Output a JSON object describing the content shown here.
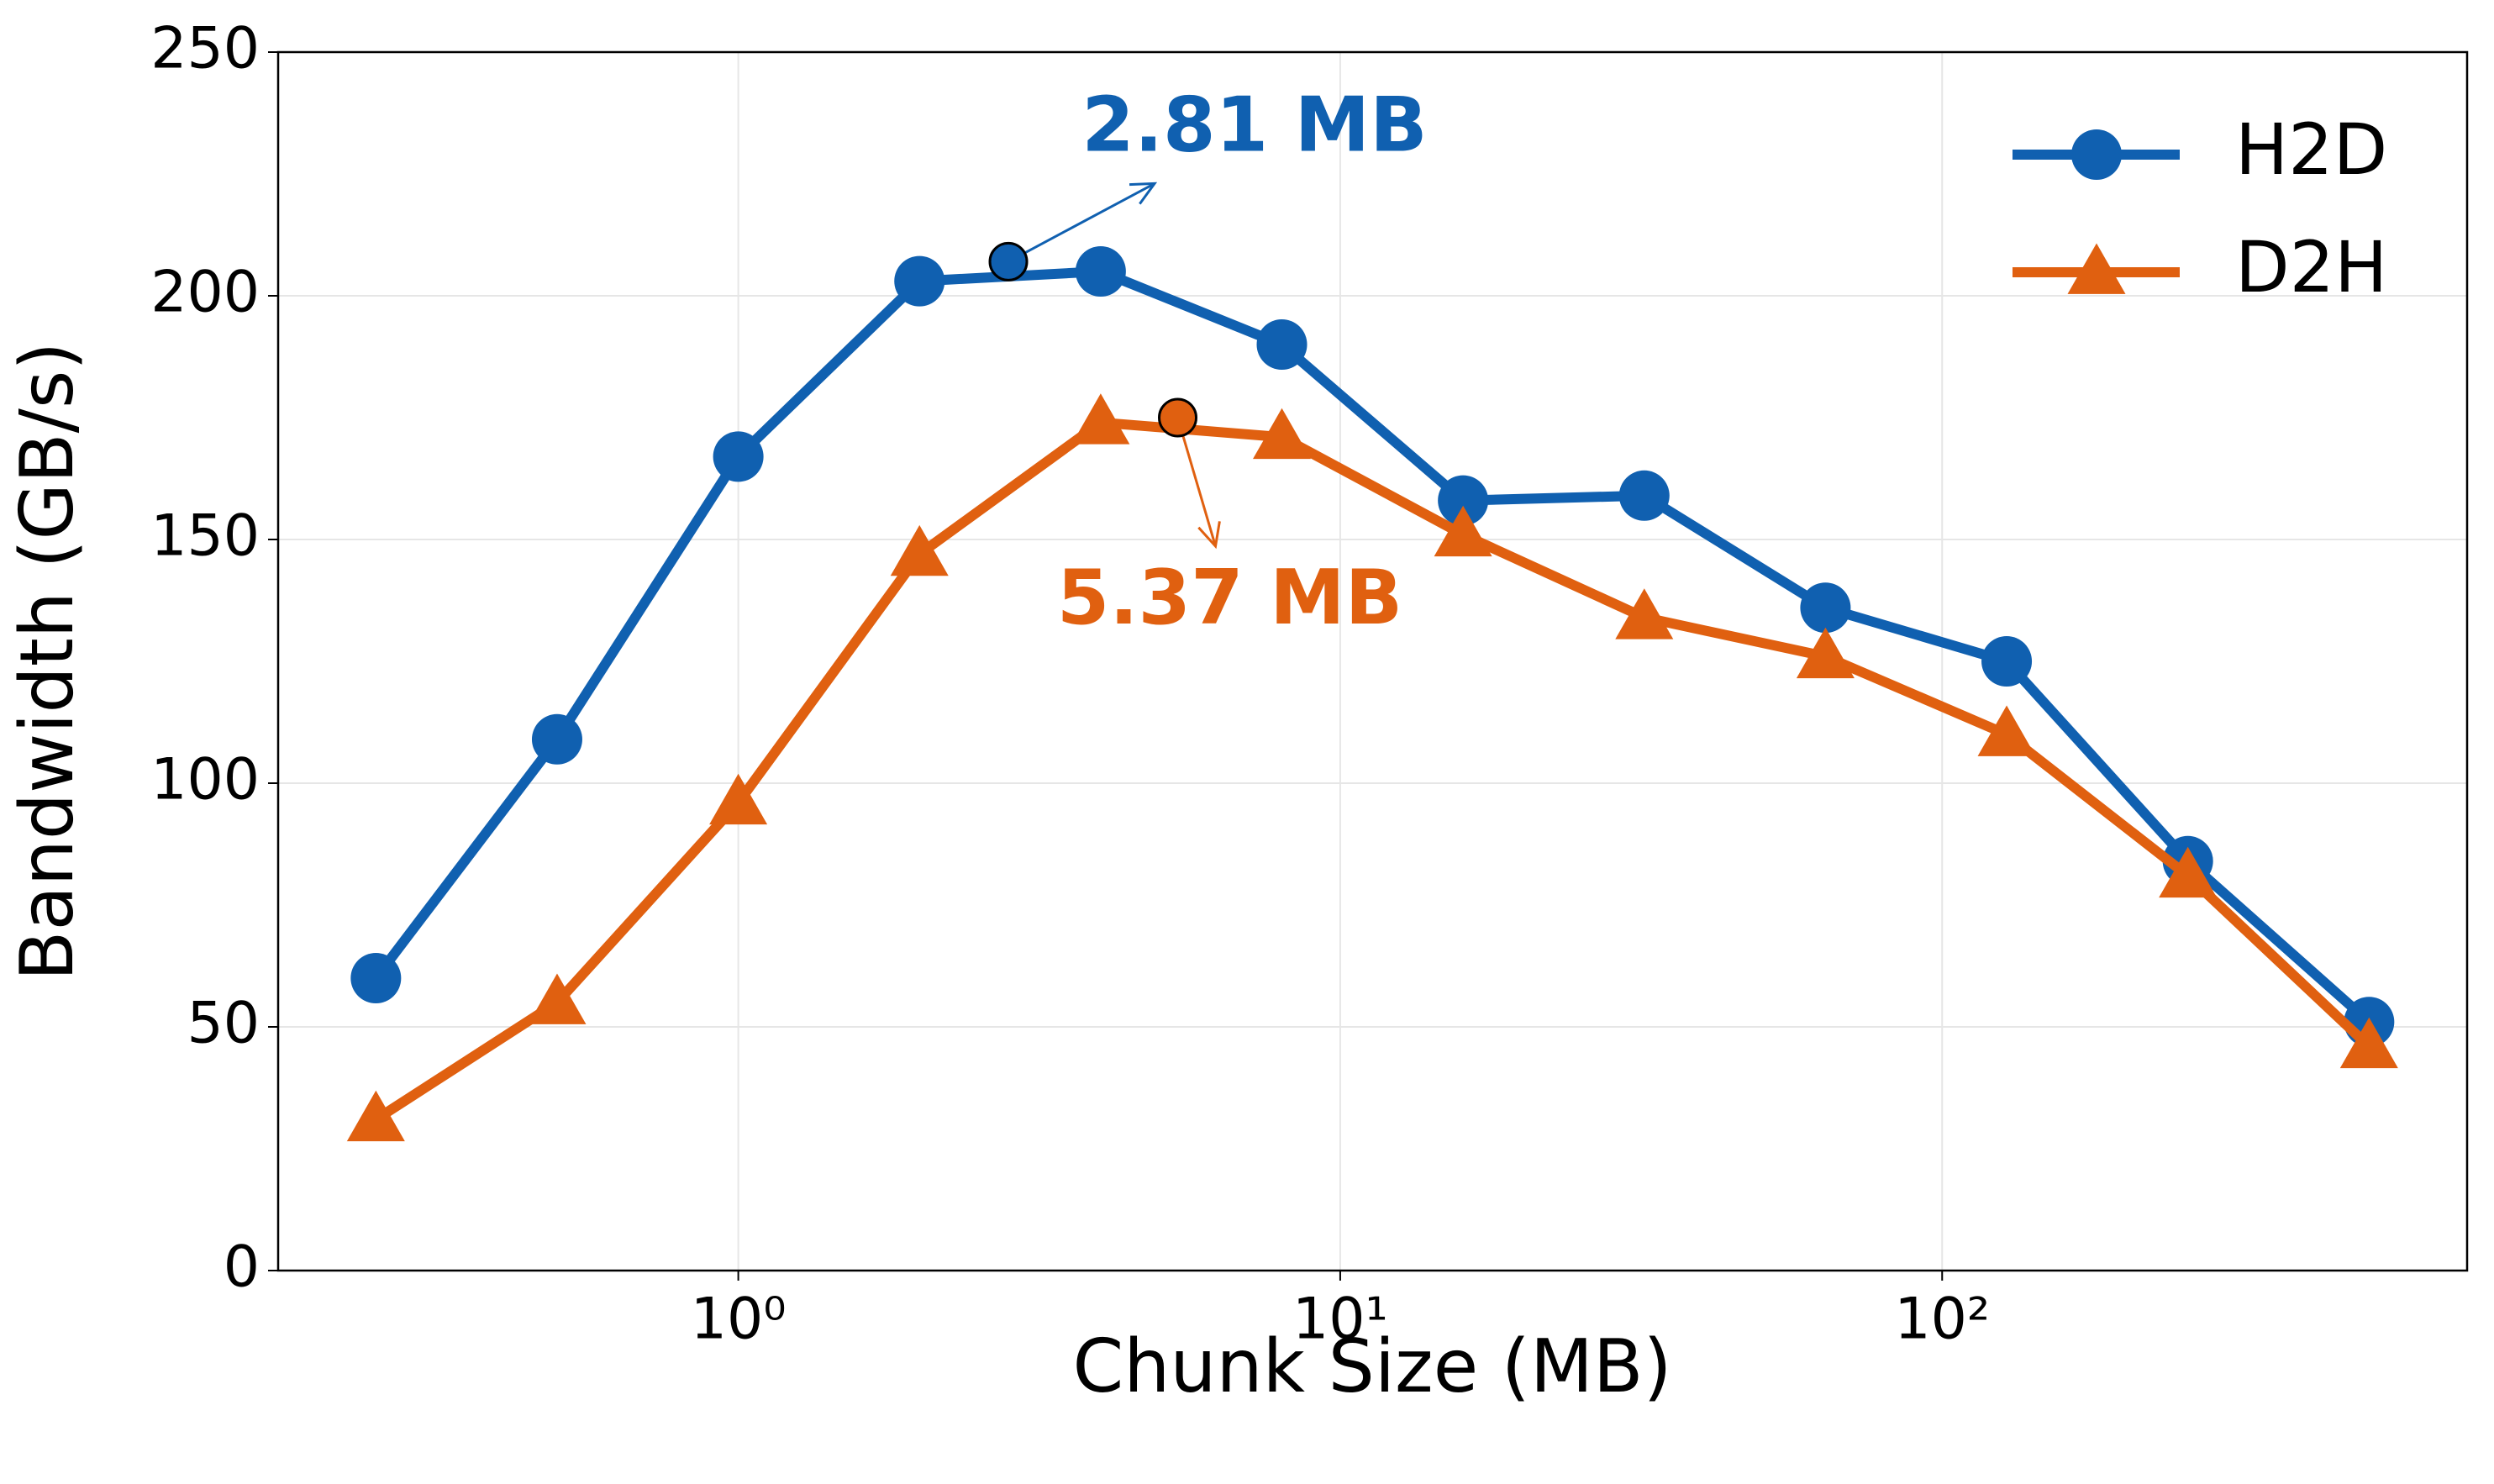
{
  "chart_data": {
    "type": "line",
    "xlabel": "Chunk Size (MB)",
    "ylabel": "Bandwidth (GB/s)",
    "x": [
      0.25,
      0.5,
      1,
      2,
      4,
      8,
      16,
      32,
      64,
      128,
      256,
      512
    ],
    "series": [
      {
        "name": "H2D",
        "color": "#1060b0",
        "marker": "circle",
        "values": [
          60,
          109,
          167,
          203,
          205,
          190,
          158,
          159,
          136,
          125,
          84,
          51
        ]
      },
      {
        "name": "D2H",
        "color": "#e06010",
        "marker": "triangle",
        "values": [
          31,
          55,
          96,
          147,
          174,
          171,
          151,
          134,
          126,
          110,
          81,
          46
        ]
      }
    ],
    "annotations": [
      {
        "text": "2.81 MB",
        "x": 2.81,
        "y": 207,
        "color": "#1060b0"
      },
      {
        "text": "5.37 MB",
        "x": 5.37,
        "y": 175,
        "color": "#e06010"
      }
    ],
    "xscale": "log",
    "xlim": [
      0.172,
      745
    ],
    "xticks": [
      {
        "value": 1,
        "label": "10⁰"
      },
      {
        "value": 10,
        "label": "10¹"
      },
      {
        "value": 100,
        "label": "10²"
      }
    ],
    "ylim": [
      0,
      250
    ],
    "yticks": [
      0,
      50,
      100,
      150,
      200,
      250
    ],
    "grid": true,
    "legend": "upper right"
  }
}
